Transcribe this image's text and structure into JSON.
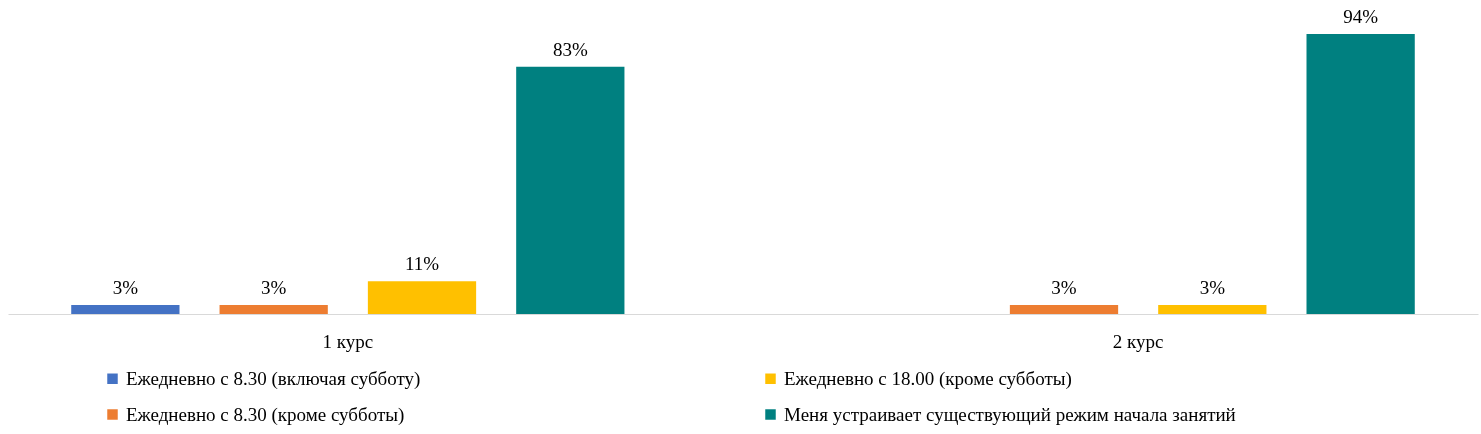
{
  "chart_data": {
    "type": "bar",
    "categories": [
      "1 курс",
      "2 курс"
    ],
    "series": [
      {
        "name": "Ежедневно с 8.30 (включая субботу)",
        "color": "#4472c4",
        "values": [
          3,
          null
        ],
        "value_labels": [
          "3%",
          null
        ]
      },
      {
        "name": "Ежедневно с 8.30 (кроме субботы)",
        "color": "#ed7d31",
        "values": [
          3,
          3
        ],
        "value_labels": [
          "3%",
          "3%"
        ]
      },
      {
        "name": "Ежедневно с 18.00 (кроме субботы)",
        "color": "#ffc000",
        "values": [
          11,
          3
        ],
        "value_labels": [
          "11%",
          "3%"
        ]
      },
      {
        "name": "Меня устраивает существующий режим начала занятий",
        "color": "#008080",
        "values": [
          83,
          94
        ],
        "value_labels": [
          "83%",
          "94%"
        ]
      }
    ],
    "legend": "bottom"
  }
}
